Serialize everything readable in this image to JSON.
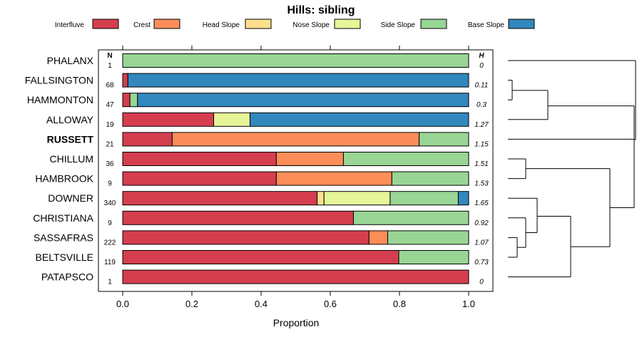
{
  "chart_data": {
    "type": "bar",
    "stacked": true,
    "orientation": "horizontal",
    "title": "Hills: sibling",
    "xlabel": "Proportion",
    "xlim": [
      0,
      1
    ],
    "x_ticks": [
      "0.0",
      "0.2",
      "0.4",
      "0.6",
      "0.8",
      "1.0"
    ],
    "n_header": "N",
    "h_header": "H",
    "legend_position": "top",
    "series": [
      {
        "name": "Interfluve",
        "color": "#d53e4f"
      },
      {
        "name": "Crest",
        "color": "#fc8d59"
      },
      {
        "name": "Head Slope",
        "color": "#fee08b"
      },
      {
        "name": "Nose Slope",
        "color": "#e6f598"
      },
      {
        "name": "Side Slope",
        "color": "#99d594"
      },
      {
        "name": "Base Slope",
        "color": "#3288bd"
      }
    ],
    "rows": [
      {
        "label": "PHALANX",
        "n": "1",
        "h": "0",
        "bold": false,
        "values": [
          0,
          0,
          0,
          0,
          1.0,
          0
        ]
      },
      {
        "label": "FALLSINGTON",
        "n": "68",
        "h": "0.11",
        "bold": false,
        "values": [
          0.015,
          0,
          0,
          0,
          0,
          0.985
        ]
      },
      {
        "label": "HAMMONTON",
        "n": "47",
        "h": "0.3",
        "bold": false,
        "values": [
          0.021,
          0,
          0,
          0,
          0.022,
          0.957
        ]
      },
      {
        "label": "ALLOWAY",
        "n": "19",
        "h": "1.27",
        "bold": false,
        "values": [
          0.263,
          0,
          0,
          0.105,
          0,
          0.632
        ]
      },
      {
        "label": "RUSSETT",
        "n": "21",
        "h": "1.15",
        "bold": true,
        "values": [
          0.143,
          0.714,
          0,
          0,
          0.143,
          0
        ]
      },
      {
        "label": "CHILLUM",
        "n": "36",
        "h": "1.51",
        "bold": false,
        "values": [
          0.444,
          0.194,
          0,
          0,
          0.362,
          0
        ]
      },
      {
        "label": "HAMBROOK",
        "n": "9",
        "h": "1.53",
        "bold": false,
        "values": [
          0.444,
          0.334,
          0,
          0,
          0.222,
          0
        ]
      },
      {
        "label": "DOWNER",
        "n": "340",
        "h": "1.65",
        "bold": false,
        "values": [
          0.562,
          0,
          0.02,
          0.191,
          0.197,
          0.03
        ]
      },
      {
        "label": "CHRISTIANA",
        "n": "9",
        "h": "0.92",
        "bold": false,
        "values": [
          0.667,
          0,
          0,
          0,
          0.333,
          0
        ]
      },
      {
        "label": "SASSAFRAS",
        "n": "222",
        "h": "1.07",
        "bold": false,
        "values": [
          0.712,
          0.054,
          0,
          0,
          0.234,
          0
        ]
      },
      {
        "label": "BELTSVILLE",
        "n": "119",
        "h": "0.73",
        "bold": false,
        "values": [
          0.798,
          0,
          0,
          0,
          0.202,
          0
        ]
      },
      {
        "label": "PATAPSCO",
        "n": "1",
        "h": "0",
        "bold": false,
        "values": [
          1.0,
          0,
          0,
          0,
          0,
          0
        ]
      }
    ],
    "dendrogram": {
      "type": "hierarchical-clustering",
      "leaf_order": [
        "PHALANX",
        "FALLSINGTON",
        "HAMMONTON",
        "ALLOWAY",
        "RUSSETT",
        "CHILLUM",
        "HAMBROOK",
        "DOWNER",
        "CHRISTIANA",
        "SASSAFRAS",
        "BELTSVILLE",
        "PATAPSCO"
      ]
    }
  }
}
